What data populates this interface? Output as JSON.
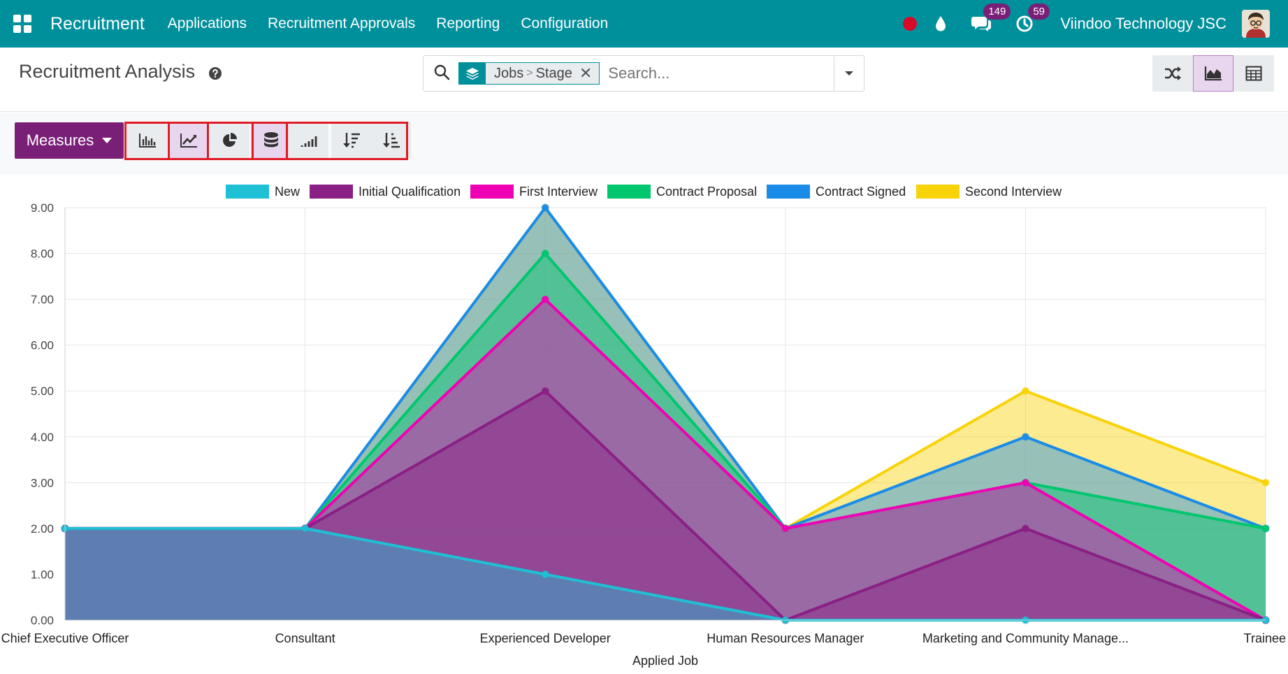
{
  "navbar": {
    "brand": "Recruitment",
    "menu": [
      "Applications",
      "Recruitment Approvals",
      "Reporting",
      "Configuration"
    ],
    "messages_badge": "149",
    "activities_badge": "59",
    "company": "Viindoo Technology JSC",
    "bg_color": "#00909c"
  },
  "control_panel": {
    "title": "Recruitment Analysis",
    "facet": {
      "group_a": "Jobs",
      "separator": ">",
      "group_b": "Stage"
    },
    "search_placeholder": "Search...",
    "views": [
      "pivot-icon",
      "graph-icon",
      "list-icon"
    ],
    "active_view": "graph"
  },
  "graph_toolbar": {
    "measures_label": "Measures",
    "buttons": [
      "bar-chart-icon",
      "line-chart-icon",
      "pie-chart-icon",
      "stacked-icon",
      "cumulative-icon",
      "sort-desc-icon",
      "sort-asc-icon"
    ],
    "active": [
      "line-chart-icon",
      "stacked-icon"
    ],
    "accent_color": "#7a1f78"
  },
  "chart_data": {
    "type": "area",
    "stacked": true,
    "categories": [
      "Chief Executive Officer",
      "Consultant",
      "Experienced Developer",
      "Human Resources Manager",
      "Marketing and Community Manage...",
      "Trainee"
    ],
    "xlabel": "Applied Job",
    "ylabel": "",
    "ylim": [
      0,
      9
    ],
    "yticks": [
      "0.00",
      "1.00",
      "2.00",
      "3.00",
      "4.00",
      "5.00",
      "6.00",
      "7.00",
      "8.00",
      "9.00"
    ],
    "legend_position": "top",
    "grid": true,
    "series": [
      {
        "name": "New",
        "color": "#1ec0d5",
        "values": [
          2,
          2,
          1,
          0,
          0,
          0
        ]
      },
      {
        "name": "Initial Qualification",
        "color": "#8a1f85",
        "values": [
          0,
          0,
          4,
          0,
          2,
          0
        ]
      },
      {
        "name": "First Interview",
        "color": "#f000b4",
        "values": [
          0,
          0,
          2,
          2,
          1,
          0
        ]
      },
      {
        "name": "Contract Proposal",
        "color": "#00c66d",
        "values": [
          0,
          0,
          1,
          0,
          0,
          2
        ]
      },
      {
        "name": "Contract Signed",
        "color": "#1a8ce8",
        "values": [
          0,
          0,
          1,
          0,
          1,
          0
        ]
      },
      {
        "name": "Second Interview",
        "color": "#f9d30a",
        "values": [
          0,
          0,
          0,
          0,
          1,
          1
        ]
      }
    ]
  }
}
